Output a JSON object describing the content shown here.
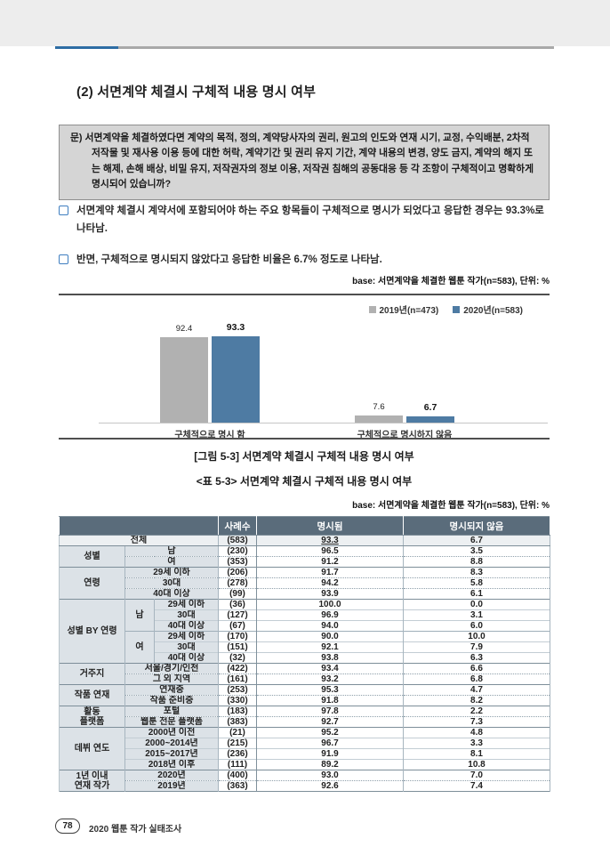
{
  "page": {
    "title": "(2) 서면계약 체결시 구체적 내용 명시 여부",
    "question": "문) 서면계약을 체결하였다면 계약의 목적, 정의, 계약당사자의 권리, 원고의 인도와 연재 시기, 교정, 수익배분, 2차적 저작물 및 재사용 이용 등에 대한 허락, 계약기간 및 권리 유지 기간, 계약 내용의 변경, 양도 금지, 계약의 해지 또는 해제, 손해 배상, 비밀 유지, 저작권자의 정보 이용, 저작권 침해의 공동대응 등 각 조항이 구체적이고 명확하게 명시되어 있습니까?",
    "bullets": [
      "서면계약 체결시 계약서에 포함되어야 하는 주요 항목들이 구체적으로 명시가 되었다고 응답한 경우는 93.3%로 나타남.",
      "반면, 구체적으로 명시되지 않았다고 응답한 비율은 6.7% 정도로 나타남."
    ],
    "base_note": "base: 서면계약을 체결한 웹툰 작가(n=583), 단위: %",
    "figure_caption": "[그림 5-3] 서면계약 체결시 구체적 내용 명시 여부",
    "table_caption": "<표 5-3> 서면계약 체결시 구체적 내용 명시 여부",
    "footer": {
      "page_number": "78",
      "text": "2020 웹툰 작가 실태조사"
    }
  },
  "colors": {
    "accent_blue": "#2e6da4",
    "bar_2019": "#b1b1b1",
    "bar_2020": "#4e7ba3",
    "table_header_bg": "#5a6c7b",
    "top_band": "#ededed"
  },
  "chart_data": {
    "type": "bar",
    "categories": [
      "구체적으로 명시 함",
      "구체적으로 명시하지 않음"
    ],
    "series": [
      {
        "name": "2019년(n=473)",
        "color": "#b1b1b1",
        "values": [
          92.4,
          7.6
        ]
      },
      {
        "name": "2020년(n=583)",
        "color": "#4e7ba3",
        "values": [
          93.3,
          6.7
        ]
      }
    ],
    "ylim": [
      0,
      100
    ],
    "grid": false,
    "legend_position": "top-right",
    "title": "",
    "xlabel": "",
    "ylabel": ""
  },
  "table": {
    "header_cells": [
      {
        "t": "",
        "c": 3
      },
      {
        "t": "사례수"
      },
      {
        "t": "명시됨"
      },
      {
        "t": "명시되지 않음"
      }
    ],
    "rows": [
      {
        "cls": "r-total",
        "cells": [
          {
            "t": "전체",
            "c": 3,
            "k": "grp"
          },
          {
            "t": "(583)",
            "k": "num"
          },
          {
            "t": "93.3",
            "k": "val u"
          },
          {
            "t": "6.7",
            "k": "val"
          }
        ]
      },
      {
        "cls": "r-solid",
        "cells": [
          {
            "t": "성별",
            "r": 2,
            "k": "grp"
          },
          {
            "t": "남",
            "c": 2,
            "k": "cat"
          },
          {
            "t": "(230)",
            "k": "num"
          },
          {
            "t": "96.5",
            "k": "val"
          },
          {
            "t": "3.5",
            "k": "val"
          }
        ]
      },
      {
        "cls": "r-dot",
        "cells": [
          {
            "t": "여",
            "c": 2,
            "k": "cat"
          },
          {
            "t": "(353)",
            "k": "num"
          },
          {
            "t": "91.2",
            "k": "val"
          },
          {
            "t": "8.8",
            "k": "val"
          }
        ]
      },
      {
        "cls": "r-solid",
        "cells": [
          {
            "t": "연령",
            "r": 3,
            "k": "grp"
          },
          {
            "t": "29세 이하",
            "c": 2,
            "k": "cat"
          },
          {
            "t": "(206)",
            "k": "num"
          },
          {
            "t": "91.7",
            "k": "val"
          },
          {
            "t": "8.3",
            "k": "val"
          }
        ]
      },
      {
        "cls": "r-dot",
        "cells": [
          {
            "t": "30대",
            "c": 2,
            "k": "cat"
          },
          {
            "t": "(278)",
            "k": "num"
          },
          {
            "t": "94.2",
            "k": "val"
          },
          {
            "t": "5.8",
            "k": "val"
          }
        ]
      },
      {
        "cls": "r-dot",
        "cells": [
          {
            "t": "40대 이상",
            "c": 2,
            "k": "cat"
          },
          {
            "t": "(99)",
            "k": "num"
          },
          {
            "t": "93.9",
            "k": "val"
          },
          {
            "t": "6.1",
            "k": "val"
          }
        ]
      },
      {
        "cls": "r-solid",
        "cells": [
          {
            "t": "성별 BY 연령",
            "r": 6,
            "k": "grp"
          },
          {
            "t": "남",
            "r": 3,
            "k": "sub"
          },
          {
            "t": "29세 이하",
            "k": "cat"
          },
          {
            "t": "(36)",
            "k": "num"
          },
          {
            "t": "100.0",
            "k": "val"
          },
          {
            "t": "0.0",
            "k": "val"
          }
        ]
      },
      {
        "cls": "r-thin",
        "cells": [
          {
            "t": "30대",
            "k": "cat"
          },
          {
            "t": "(127)",
            "k": "num"
          },
          {
            "t": "96.9",
            "k": "val"
          },
          {
            "t": "3.1",
            "k": "val"
          }
        ]
      },
      {
        "cls": "r-thin",
        "cells": [
          {
            "t": "40대 이상",
            "k": "cat"
          },
          {
            "t": "(67)",
            "k": "num"
          },
          {
            "t": "94.0",
            "k": "val"
          },
          {
            "t": "6.0",
            "k": "val"
          }
        ]
      },
      {
        "cls": "r-mid",
        "cells": [
          {
            "t": "여",
            "r": 3,
            "k": "sub"
          },
          {
            "t": "29세 이하",
            "k": "cat"
          },
          {
            "t": "(170)",
            "k": "num"
          },
          {
            "t": "90.0",
            "k": "val"
          },
          {
            "t": "10.0",
            "k": "val"
          }
        ]
      },
      {
        "cls": "r-thin",
        "cells": [
          {
            "t": "30대",
            "k": "cat"
          },
          {
            "t": "(151)",
            "k": "num"
          },
          {
            "t": "92.1",
            "k": "val"
          },
          {
            "t": "7.9",
            "k": "val"
          }
        ]
      },
      {
        "cls": "r-thin",
        "cells": [
          {
            "t": "40대 이상",
            "k": "cat"
          },
          {
            "t": "(32)",
            "k": "num"
          },
          {
            "t": "93.8",
            "k": "val"
          },
          {
            "t": "6.3",
            "k": "val"
          }
        ]
      },
      {
        "cls": "r-solid",
        "cells": [
          {
            "t": "거주지",
            "r": 2,
            "k": "grp"
          },
          {
            "t": "서울/경기/인천",
            "c": 2,
            "k": "cat"
          },
          {
            "t": "(422)",
            "k": "num"
          },
          {
            "t": "93.4",
            "k": "val"
          },
          {
            "t": "6.6",
            "k": "val"
          }
        ]
      },
      {
        "cls": "r-dot",
        "cells": [
          {
            "t": "그 외 지역",
            "c": 2,
            "k": "cat"
          },
          {
            "t": "(161)",
            "k": "num"
          },
          {
            "t": "93.2",
            "k": "val"
          },
          {
            "t": "6.8",
            "k": "val"
          }
        ]
      },
      {
        "cls": "r-solid",
        "cells": [
          {
            "t": "작품 연재",
            "r": 2,
            "k": "grp"
          },
          {
            "t": "연재중",
            "c": 2,
            "k": "cat"
          },
          {
            "t": "(253)",
            "k": "num"
          },
          {
            "t": "95.3",
            "k": "val"
          },
          {
            "t": "4.7",
            "k": "val"
          }
        ]
      },
      {
        "cls": "r-dot",
        "cells": [
          {
            "t": "작품 준비중",
            "c": 2,
            "k": "cat"
          },
          {
            "t": "(330)",
            "k": "num"
          },
          {
            "t": "91.8",
            "k": "val"
          },
          {
            "t": "8.2",
            "k": "val"
          }
        ]
      },
      {
        "cls": "r-solid",
        "cells": [
          {
            "t": "활동\n플랫폼",
            "r": 2,
            "k": "grp"
          },
          {
            "t": "포털",
            "c": 2,
            "k": "cat"
          },
          {
            "t": "(183)",
            "k": "num"
          },
          {
            "t": "97.8",
            "k": "val"
          },
          {
            "t": "2.2",
            "k": "val"
          }
        ]
      },
      {
        "cls": "r-dot",
        "cells": [
          {
            "t": "웹툰 전문 플랫폼",
            "c": 2,
            "k": "cat"
          },
          {
            "t": "(383)",
            "k": "num"
          },
          {
            "t": "92.7",
            "k": "val"
          },
          {
            "t": "7.3",
            "k": "val"
          }
        ]
      },
      {
        "cls": "r-solid",
        "cells": [
          {
            "t": "데뷔 연도",
            "r": 4,
            "k": "grp"
          },
          {
            "t": "2000년 이전",
            "c": 2,
            "k": "cat"
          },
          {
            "t": "(21)",
            "k": "num"
          },
          {
            "t": "95.2",
            "k": "val"
          },
          {
            "t": "4.8",
            "k": "val"
          }
        ]
      },
      {
        "cls": "r-thin",
        "cells": [
          {
            "t": "2000~2014년",
            "c": 2,
            "k": "cat"
          },
          {
            "t": "(215)",
            "k": "num"
          },
          {
            "t": "96.7",
            "k": "val"
          },
          {
            "t": "3.3",
            "k": "val"
          }
        ]
      },
      {
        "cls": "r-thin",
        "cells": [
          {
            "t": "2015~2017년",
            "c": 2,
            "k": "cat"
          },
          {
            "t": "(236)",
            "k": "num"
          },
          {
            "t": "91.9",
            "k": "val"
          },
          {
            "t": "8.1",
            "k": "val"
          }
        ]
      },
      {
        "cls": "r-thin",
        "cells": [
          {
            "t": "2018년 이후",
            "c": 2,
            "k": "cat"
          },
          {
            "t": "(111)",
            "k": "num"
          },
          {
            "t": "89.2",
            "k": "val"
          },
          {
            "t": "10.8",
            "k": "val"
          }
        ]
      },
      {
        "cls": "r-solid",
        "cells": [
          {
            "t": "1년 이내\n연재 작가",
            "r": 2,
            "k": "grp"
          },
          {
            "t": "2020년",
            "c": 2,
            "k": "cat"
          },
          {
            "t": "(400)",
            "k": "num"
          },
          {
            "t": "93.0",
            "k": "val"
          },
          {
            "t": "7.0",
            "k": "val"
          }
        ]
      },
      {
        "cls": "r-dot",
        "cells": [
          {
            "t": "2019년",
            "c": 2,
            "k": "cat"
          },
          {
            "t": "(363)",
            "k": "num"
          },
          {
            "t": "92.6",
            "k": "val"
          },
          {
            "t": "7.4",
            "k": "val"
          }
        ]
      }
    ]
  }
}
